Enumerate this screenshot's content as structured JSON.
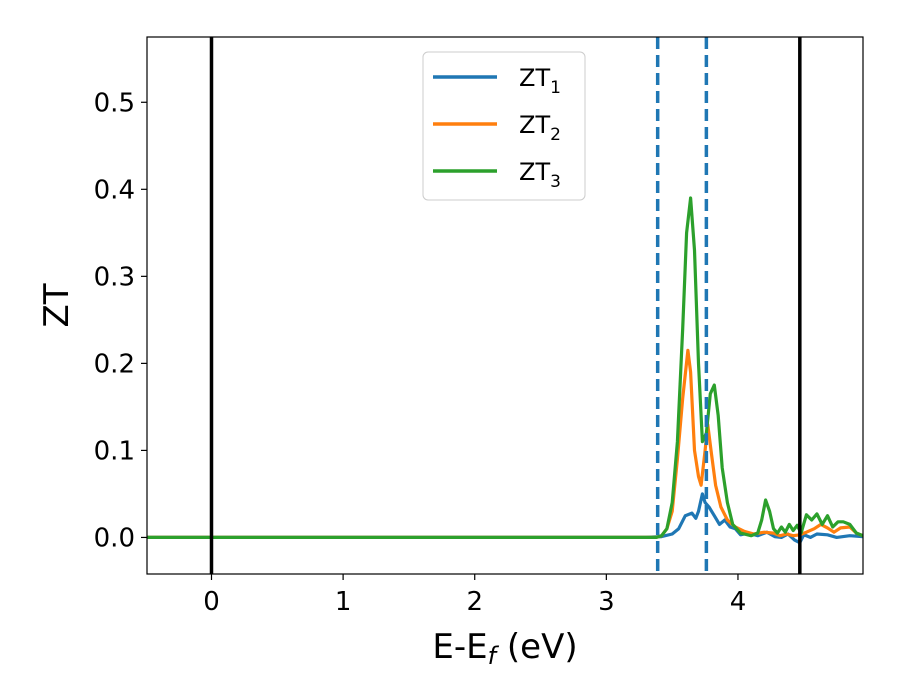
{
  "chart_data": {
    "type": "line",
    "xlabel": "E-E",
    "xlabel_sub": "f",
    "xlabel_unit": " (eV)",
    "ylabel": "ZT",
    "xlim": [
      -0.49,
      4.95
    ],
    "ylim": [
      -0.042,
      0.575
    ],
    "xticks": [
      0,
      1,
      2,
      3,
      4
    ],
    "yticks": [
      0.0,
      0.1,
      0.2,
      0.3,
      0.4,
      0.5
    ],
    "xtick_labels": [
      "0",
      "1",
      "2",
      "3",
      "4"
    ],
    "ytick_labels": [
      "0.0",
      "0.1",
      "0.2",
      "0.3",
      "0.4",
      "0.5"
    ],
    "grid": false,
    "legend_position": "top-center",
    "vlines": [
      {
        "x": 0.0,
        "style": "solid",
        "color": "#000000"
      },
      {
        "x": 3.39,
        "style": "dashed",
        "color": "#1f77b4"
      },
      {
        "x": 3.76,
        "style": "dashed",
        "color": "#1f77b4"
      },
      {
        "x": 4.47,
        "style": "solid",
        "color": "#000000"
      }
    ],
    "series": [
      {
        "name": "ZT",
        "sub": "1",
        "color": "#1f77b4",
        "points": [
          [
            -0.49,
            0
          ],
          [
            3.3,
            0
          ],
          [
            3.42,
            0.001
          ],
          [
            3.5,
            0.004
          ],
          [
            3.55,
            0.01
          ],
          [
            3.6,
            0.025
          ],
          [
            3.65,
            0.028
          ],
          [
            3.68,
            0.022
          ],
          [
            3.7,
            0.03
          ],
          [
            3.73,
            0.05
          ],
          [
            3.75,
            0.04
          ],
          [
            3.78,
            0.035
          ],
          [
            3.82,
            0.025
          ],
          [
            3.86,
            0.015
          ],
          [
            3.9,
            0.02
          ],
          [
            3.94,
            0.012
          ],
          [
            3.98,
            0.01
          ],
          [
            4.02,
            0.003
          ],
          [
            4.08,
            0.005
          ],
          [
            4.15,
            0.002
          ],
          [
            4.22,
            0.006
          ],
          [
            4.28,
            0.001
          ],
          [
            4.33,
            0.0
          ],
          [
            4.38,
            0.004
          ],
          [
            4.43,
            -0.003
          ],
          [
            4.47,
            -0.006
          ],
          [
            4.5,
            0.003
          ],
          [
            4.55,
            0.0
          ],
          [
            4.6,
            0.004
          ],
          [
            4.68,
            0.003
          ],
          [
            4.75,
            0.0
          ],
          [
            4.85,
            0.002
          ],
          [
            4.95,
            0.001
          ]
        ]
      },
      {
        "name": "ZT",
        "sub": "2",
        "color": "#ff7f0e",
        "points": [
          [
            -0.49,
            0
          ],
          [
            3.38,
            0
          ],
          [
            3.42,
            0.002
          ],
          [
            3.46,
            0.01
          ],
          [
            3.5,
            0.03
          ],
          [
            3.54,
            0.09
          ],
          [
            3.58,
            0.16
          ],
          [
            3.62,
            0.215
          ],
          [
            3.64,
            0.19
          ],
          [
            3.67,
            0.1
          ],
          [
            3.7,
            0.07
          ],
          [
            3.72,
            0.06
          ],
          [
            3.75,
            0.1
          ],
          [
            3.77,
            0.13
          ],
          [
            3.8,
            0.095
          ],
          [
            3.83,
            0.06
          ],
          [
            3.87,
            0.035
          ],
          [
            3.92,
            0.02
          ],
          [
            3.98,
            0.012
          ],
          [
            4.05,
            0.007
          ],
          [
            4.12,
            0.004
          ],
          [
            4.2,
            0.006
          ],
          [
            4.27,
            0.005
          ],
          [
            4.32,
            0.002
          ],
          [
            4.37,
            0.004
          ],
          [
            4.42,
            0.002
          ],
          [
            4.47,
            0.003
          ],
          [
            4.52,
            0.006
          ],
          [
            4.58,
            0.01
          ],
          [
            4.63,
            0.015
          ],
          [
            4.68,
            0.011
          ],
          [
            4.73,
            0.006
          ],
          [
            4.78,
            0.011
          ],
          [
            4.85,
            0.012
          ],
          [
            4.9,
            0.005
          ],
          [
            4.95,
            0.002
          ]
        ]
      },
      {
        "name": "ZT",
        "sub": "3",
        "color": "#2ca02c",
        "points": [
          [
            -0.49,
            0
          ],
          [
            3.38,
            0
          ],
          [
            3.42,
            0.002
          ],
          [
            3.46,
            0.01
          ],
          [
            3.5,
            0.04
          ],
          [
            3.54,
            0.11
          ],
          [
            3.58,
            0.24
          ],
          [
            3.61,
            0.35
          ],
          [
            3.64,
            0.39
          ],
          [
            3.67,
            0.33
          ],
          [
            3.7,
            0.2
          ],
          [
            3.73,
            0.11
          ],
          [
            3.76,
            0.12
          ],
          [
            3.79,
            0.165
          ],
          [
            3.82,
            0.175
          ],
          [
            3.85,
            0.14
          ],
          [
            3.88,
            0.08
          ],
          [
            3.92,
            0.04
          ],
          [
            3.96,
            0.015
          ],
          [
            4.02,
            0.005
          ],
          [
            4.1,
            0.002
          ],
          [
            4.15,
            0.005
          ],
          [
            4.18,
            0.02
          ],
          [
            4.21,
            0.043
          ],
          [
            4.24,
            0.03
          ],
          [
            4.27,
            0.01
          ],
          [
            4.3,
            0.005
          ],
          [
            4.33,
            0.012
          ],
          [
            4.36,
            0.006
          ],
          [
            4.39,
            0.015
          ],
          [
            4.42,
            0.008
          ],
          [
            4.45,
            0.014
          ],
          [
            4.48,
            0.005
          ],
          [
            4.52,
            0.026
          ],
          [
            4.56,
            0.02
          ],
          [
            4.6,
            0.027
          ],
          [
            4.64,
            0.015
          ],
          [
            4.68,
            0.025
          ],
          [
            4.72,
            0.012
          ],
          [
            4.76,
            0.018
          ],
          [
            4.8,
            0.018
          ],
          [
            4.85,
            0.015
          ],
          [
            4.9,
            0.005
          ],
          [
            4.95,
            0.002
          ]
        ]
      }
    ]
  }
}
